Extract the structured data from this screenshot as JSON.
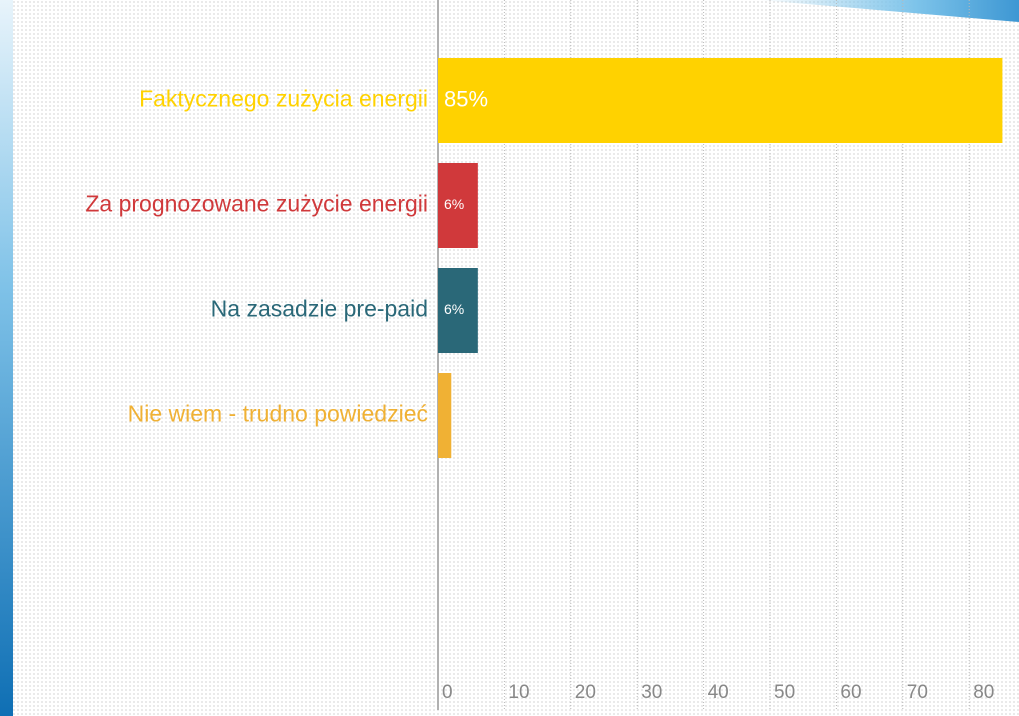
{
  "chart_data": {
    "type": "barh",
    "categories": [
      "Faktycznego zużycia energii",
      "Za prognozowane zużycie energii",
      "Na zasadzie pre-paid",
      "Nie wiem - trudno powiedzieć"
    ],
    "values": [
      85,
      6,
      6,
      2
    ],
    "value_labels": [
      "85%",
      "6%",
      "6%",
      null
    ],
    "colors": [
      "#ffd200",
      "#d0393b",
      "#2a6878",
      "#f0b134"
    ],
    "xlim": [
      0,
      87.5
    ],
    "xticks": [
      0,
      10,
      20,
      30,
      40,
      50,
      60,
      70,
      80
    ],
    "grid": true
  }
}
